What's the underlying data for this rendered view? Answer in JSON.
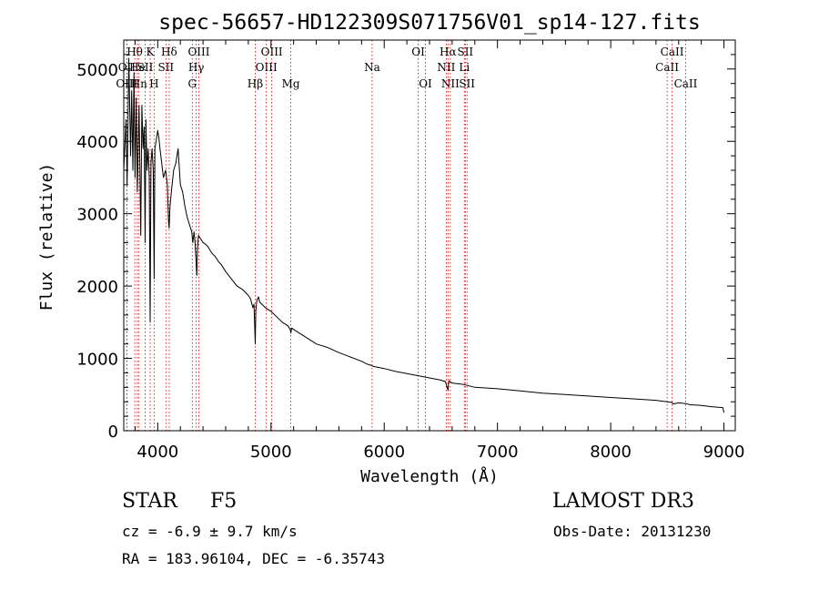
{
  "chart_data": {
    "type": "line",
    "title": "spec-56657-HD122309S071756V01_sp14-127.fits",
    "xlabel": "Wavelength (Å)",
    "ylabel": "Flux (relative)",
    "xlim": [
      3700,
      9100
    ],
    "ylim": [
      0,
      5400
    ],
    "xticks": [
      4000,
      5000,
      6000,
      7000,
      8000,
      9000
    ],
    "yticks": [
      0,
      1000,
      2000,
      3000,
      4000,
      5000
    ],
    "series": [
      {
        "name": "flux",
        "x": [
          3700,
          3720,
          3730,
          3745,
          3760,
          3770,
          3780,
          3790,
          3800,
          3810,
          3820,
          3835,
          3850,
          3860,
          3870,
          3880,
          3889,
          3895,
          3905,
          3915,
          3925,
          3933,
          3940,
          3950,
          3960,
          3968,
          3975,
          3985,
          4000,
          4010,
          4020,
          4035,
          4050,
          4070,
          4085,
          4095,
          4101,
          4108,
          4120,
          4140,
          4160,
          4180,
          4200,
          4220,
          4240,
          4260,
          4280,
          4300,
          4310,
          4320,
          4330,
          4340,
          4345,
          4350,
          4360,
          4380,
          4400,
          4420,
          4440,
          4460,
          4480,
          4500,
          4520,
          4540,
          4560,
          4580,
          4600,
          4650,
          4700,
          4750,
          4800,
          4820,
          4840,
          4850,
          4861,
          4866,
          4875,
          4890,
          4900,
          4950,
          5000,
          5100,
          5150,
          5170,
          5175,
          5183,
          5200,
          5300,
          5400,
          5500,
          5600,
          5700,
          5800,
          5850,
          5893,
          5900,
          6000,
          6100,
          6200,
          6300,
          6400,
          6500,
          6540,
          6563,
          6570,
          6600,
          6700,
          6800,
          7000,
          7200,
          7400,
          7600,
          7800,
          8000,
          8200,
          8400,
          8500,
          8542,
          8550,
          8600,
          8662,
          8700,
          8800,
          8900,
          8990,
          9000
        ],
        "values": [
          3600,
          4300,
          3400,
          5150,
          3800,
          4700,
          3600,
          4950,
          3500,
          4600,
          3300,
          4500,
          2700,
          4500,
          3900,
          4200,
          2600,
          4300,
          3600,
          3900,
          3500,
          1500,
          3700,
          3900,
          3600,
          2100,
          3900,
          4000,
          4150,
          4050,
          3900,
          3700,
          3500,
          3600,
          3400,
          2900,
          2800,
          3100,
          3300,
          3600,
          3700,
          3900,
          3400,
          3300,
          3100,
          2950,
          2850,
          2750,
          2600,
          2750,
          2600,
          2300,
          2150,
          2500,
          2700,
          2650,
          2600,
          2580,
          2550,
          2500,
          2450,
          2420,
          2380,
          2330,
          2300,
          2250,
          2200,
          2100,
          2000,
          1950,
          1870,
          1820,
          1700,
          1750,
          1200,
          1650,
          1800,
          1850,
          1780,
          1700,
          1650,
          1500,
          1450,
          1400,
          1350,
          1420,
          1400,
          1300,
          1200,
          1150,
          1080,
          1020,
          960,
          920,
          900,
          890,
          860,
          820,
          790,
          760,
          730,
          700,
          680,
          560,
          690,
          660,
          640,
          600,
          580,
          550,
          520,
          500,
          480,
          460,
          440,
          420,
          400,
          390,
          370,
          385,
          375,
          360,
          350,
          330,
          320,
          250
        ]
      }
    ],
    "lines": [
      {
        "name": "Hθ",
        "x": 3797,
        "row": 0,
        "show": true
      },
      {
        "name": "OII",
        "x": 3727,
        "row": 1,
        "show": true
      },
      {
        "name": "OIII",
        "x": 3727,
        "row": 2,
        "show": true
      },
      {
        "name": "He",
        "x": 3820,
        "row": 1,
        "show": true
      },
      {
        "name": "Hn",
        "x": 3835,
        "row": 2,
        "show": true
      },
      {
        "name": "K",
        "x": 3933,
        "row": 0,
        "show": true
      },
      {
        "name": "SII",
        "x": 3889,
        "row": 1,
        "show": true
      },
      {
        "name": "H",
        "x": 3968,
        "row": 2,
        "show": true
      },
      {
        "name": "Hδ",
        "x": 4101,
        "row": 0,
        "show": true
      },
      {
        "name": "SII",
        "x": 4072,
        "row": 1,
        "show": true
      },
      {
        "name": "OIII",
        "x": 4363,
        "row": 0,
        "show": true
      },
      {
        "name": "Hγ",
        "x": 4340,
        "row": 1,
        "show": true
      },
      {
        "name": "G",
        "x": 4305,
        "row": 2,
        "show": true
      },
      {
        "name": "Hβ",
        "x": 4861,
        "row": 2,
        "show": true
      },
      {
        "name": "OIII",
        "x": 5007,
        "row": 0,
        "show": true
      },
      {
        "name": "OIII",
        "x": 4959,
        "row": 1,
        "show": true
      },
      {
        "name": "Mg",
        "x": 5175,
        "row": 2,
        "show": true
      },
      {
        "name": "Na",
        "x": 5893,
        "row": 1,
        "show": true
      },
      {
        "name": "OI",
        "x": 6300,
        "row": 0,
        "show": true
      },
      {
        "name": "OI",
        "x": 6364,
        "row": 2,
        "show": true
      },
      {
        "name": "Hα",
        "x": 6563,
        "row": 0,
        "show": true
      },
      {
        "name": "SII",
        "x": 6716,
        "row": 0,
        "show": true
      },
      {
        "name": "NII",
        "x": 6548,
        "row": 1,
        "show": true
      },
      {
        "name": "Li",
        "x": 6708,
        "row": 1,
        "show": true
      },
      {
        "name": "NII",
        "x": 6584,
        "row": 2,
        "show": true
      },
      {
        "name": "SII",
        "x": 6731,
        "row": 2,
        "show": true
      },
      {
        "name": "CaII",
        "x": 8542,
        "row": 0,
        "show": true
      },
      {
        "name": "CaII",
        "x": 8498,
        "row": 1,
        "show": true
      },
      {
        "name": "CaII",
        "x": 8662,
        "row": 2,
        "show": true
      }
    ]
  },
  "info": {
    "object_class": "STAR",
    "subclass": "F5",
    "survey": "LAMOST DR3",
    "cz": "cz = -6.9 ± 9.7 km/s",
    "obs_date": "Obs-Date: 20131230",
    "coords": "RA = 183.96104, DEC =  -6.35743"
  },
  "colors": {
    "line_marker": "#c00000",
    "spectrum": "#000000"
  }
}
